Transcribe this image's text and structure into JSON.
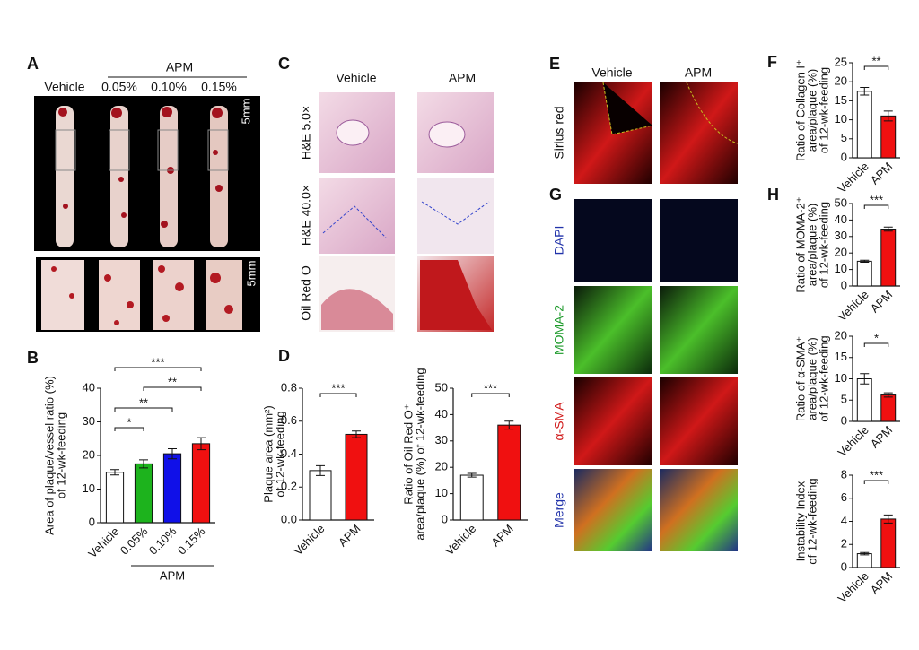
{
  "panel_a": {
    "label": "A",
    "group": "APM",
    "columns": [
      "Vehicle",
      "0.05%",
      "0.10%",
      "0.15%"
    ],
    "scale_bars": [
      "5mm",
      "5mm"
    ]
  },
  "panel_c": {
    "label": "C",
    "columns": [
      "Vehicle",
      "APM"
    ],
    "rows": [
      "H&E 5.0×",
      "H&E 40.0×",
      "Oil Red O"
    ]
  },
  "panel_e": {
    "label": "E",
    "columns": [
      "Vehicle",
      "APM"
    ],
    "rows": [
      "Sirius red"
    ]
  },
  "panel_g": {
    "label": "G",
    "rows": [
      "DAPI",
      "MOMA-2",
      "α-SMA",
      "Merge"
    ]
  },
  "chart_data": [
    {
      "type": "bar",
      "panel": "B",
      "ylabel": [
        "Area of plaque/vessel ratio (%)",
        "of 12-wk-feeding"
      ],
      "categories": [
        "Vehicle",
        "0.05%",
        "0.10%",
        "0.15%"
      ],
      "values": [
        15,
        17.5,
        20.5,
        23.5
      ],
      "errors": [
        0.8,
        1.2,
        1.5,
        1.8
      ],
      "colors": [
        "#ffffff",
        "#1db31d",
        "#1010e8",
        "#f01010"
      ],
      "ylim": [
        0,
        40
      ],
      "yticks": [
        0,
        10,
        20,
        30,
        40
      ],
      "significance": [
        "*",
        "**",
        "***",
        "**"
      ],
      "group": "APM"
    },
    {
      "type": "bar",
      "panel": "D",
      "ylabel": [
        "Plaque area (mm²)",
        "of 12-wk-feeding"
      ],
      "categories": [
        "Vehicle",
        "APM"
      ],
      "values": [
        0.3,
        0.52
      ],
      "errors": [
        0.03,
        0.02
      ],
      "colors": [
        "#ffffff",
        "#f01010"
      ],
      "ylim": [
        0,
        0.8
      ],
      "yticks": [
        {
          "value": 0,
          "label": "0.0"
        },
        0.2,
        0.4,
        0.6,
        0.8
      ],
      "significance": [
        "***"
      ]
    },
    {
      "type": "bar",
      "ylabel": [
        "Ratio of Oil Red O⁺",
        "area/plaque (%) of 12-wk-feeding"
      ],
      "categories": [
        "Vehicle",
        "APM"
      ],
      "values": [
        17,
        36
      ],
      "errors": [
        0.7,
        1.5
      ],
      "colors": [
        "#ffffff",
        "#f01010"
      ],
      "ylim": [
        0,
        50
      ],
      "yticks": [
        0,
        10,
        20,
        30,
        40,
        50
      ],
      "significance": [
        "***"
      ]
    },
    {
      "type": "bar",
      "panel": "F",
      "ylabel": [
        "Ratio of Collagen I⁺",
        "area/plaque (%)",
        "of 12-wk-feeding"
      ],
      "categories": [
        "Vehicle",
        "APM"
      ],
      "values": [
        17.5,
        11
      ],
      "errors": [
        1,
        1.3
      ],
      "colors": [
        "#ffffff",
        "#f01010"
      ],
      "ylim": [
        0,
        25
      ],
      "yticks": [
        0,
        5,
        10,
        15,
        20,
        25
      ],
      "significance": [
        "**"
      ]
    },
    {
      "type": "bar",
      "panel": "H",
      "ylabel": [
        "Ratio of MOMA-2⁺",
        "area/plaque (%)",
        "of 12-wk-feeding"
      ],
      "categories": [
        "Vehicle",
        "APM"
      ],
      "values": [
        15,
        34.5
      ],
      "errors": [
        0.6,
        1.2
      ],
      "colors": [
        "#ffffff",
        "#f01010"
      ],
      "ylim": [
        0,
        50
      ],
      "yticks": [
        0,
        10,
        20,
        30,
        40,
        50
      ],
      "significance": [
        "***"
      ]
    },
    {
      "type": "bar",
      "ylabel": [
        "Ratio of α-SMA⁺",
        "area/plaque (%)",
        "of 12-wk-feeding"
      ],
      "categories": [
        "Vehicle",
        "APM"
      ],
      "values": [
        10,
        6.2
      ],
      "errors": [
        1.2,
        0.5
      ],
      "colors": [
        "#ffffff",
        "#f01010"
      ],
      "ylim": [
        0,
        20
      ],
      "yticks": [
        0,
        5,
        10,
        15,
        20
      ],
      "significance": [
        "*"
      ]
    },
    {
      "type": "bar",
      "ylabel": [
        "Instability Index",
        "of 12-wk-feeding"
      ],
      "categories": [
        "Vehicle",
        "APM"
      ],
      "values": [
        1.2,
        4.2
      ],
      "errors": [
        0.1,
        0.35
      ],
      "colors": [
        "#ffffff",
        "#f01010"
      ],
      "ylim": [
        0,
        8
      ],
      "yticks": [
        0,
        2,
        4,
        6,
        8
      ],
      "significance": [
        "***"
      ]
    }
  ]
}
